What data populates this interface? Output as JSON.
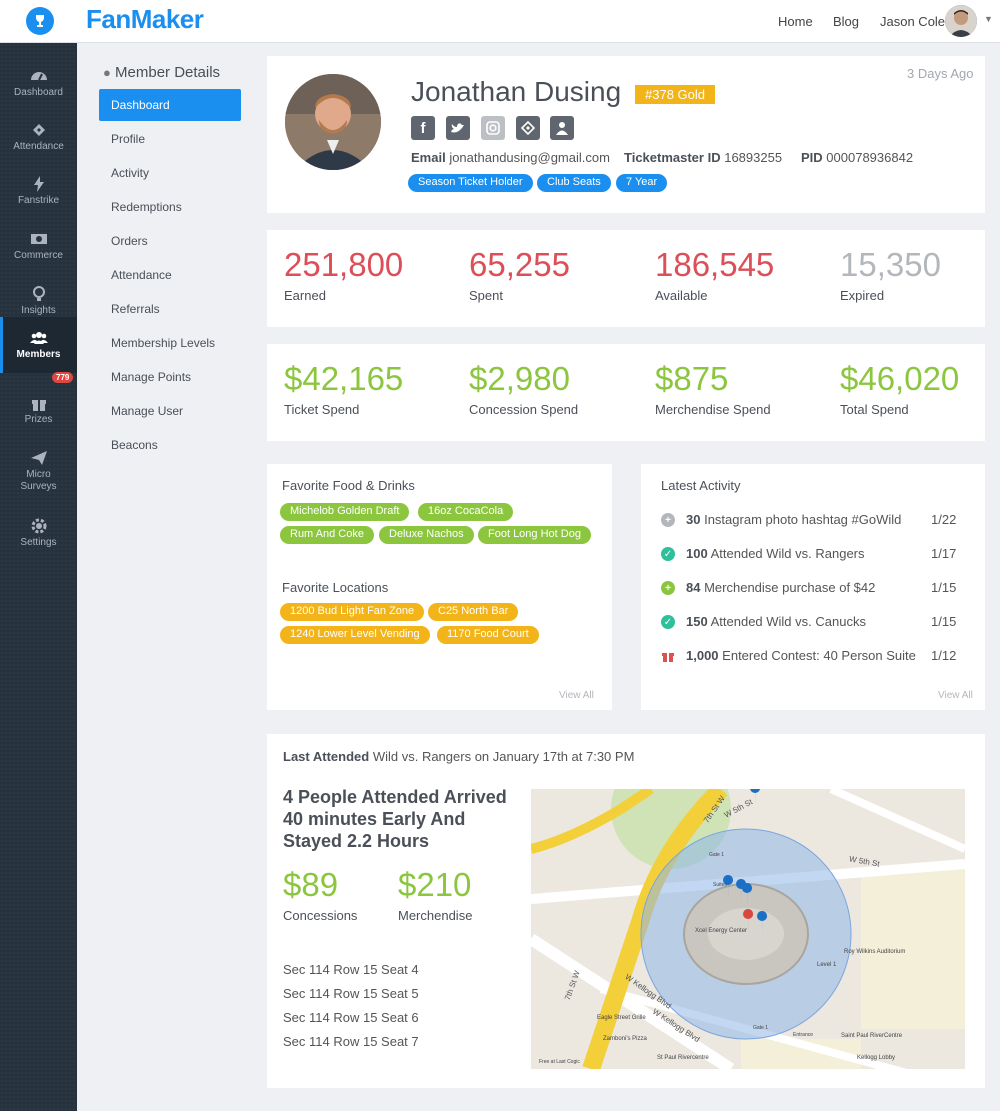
{
  "brand": {
    "name": "FanMaker",
    "accent": "#1b8ff0"
  },
  "topnav": {
    "home": "Home",
    "blog": "Blog",
    "user": "Jason Cole"
  },
  "sidebar": [
    {
      "label": "Dashboard",
      "icon": "dashboard-icon"
    },
    {
      "label": "Attendance",
      "icon": "ticket-icon"
    },
    {
      "label": "Fanstrike",
      "icon": "bolt-icon"
    },
    {
      "label": "Commerce",
      "icon": "money-icon"
    },
    {
      "label": "Insights",
      "icon": "lightbulb-icon"
    },
    {
      "label": "Members",
      "icon": "users-icon",
      "active": true
    },
    {
      "label": "Prizes",
      "icon": "gift-icon",
      "badge": "779"
    },
    {
      "label": "Micro",
      "label2": "Surveys",
      "icon": "paper-plane-icon"
    },
    {
      "label": "Settings",
      "icon": "gear-icon"
    }
  ],
  "subnav": {
    "title": "Member Details",
    "items": [
      "Dashboard",
      "Profile",
      "Activity",
      "Redemptions",
      "Orders",
      "Attendance",
      "Referrals",
      "Membership Levels",
      "Manage Points",
      "Manage User",
      "Beacons"
    ]
  },
  "profile": {
    "name": "Jonathan Dusing",
    "badge": "#378 Gold",
    "last_seen": "3 Days Ago",
    "email_label": "Email",
    "email": "jonathandusing@gmail.com",
    "tm_label": "Ticketmaster ID",
    "tm_id": "16893255",
    "pid_label": "PID",
    "pid": "000078936842",
    "tags": [
      "Season Ticket Holder",
      "Club Seats",
      "7 Year"
    ]
  },
  "points": [
    {
      "value": "251,800",
      "label": "Earned"
    },
    {
      "value": "65,255",
      "label": "Spent"
    },
    {
      "value": "186,545",
      "label": "Available"
    },
    {
      "value": "15,350",
      "label": "Expired"
    }
  ],
  "spend": [
    {
      "value": "$42,165",
      "label": "Ticket Spend"
    },
    {
      "value": "$2,980",
      "label": "Concession Spend"
    },
    {
      "value": "$875",
      "label": "Merchendise Spend"
    },
    {
      "value": "$46,020",
      "label": "Total Spend"
    }
  ],
  "favorites": {
    "food_title": "Favorite Food & Drinks",
    "food": [
      "Michelob Golden Draft",
      "16oz CocaCola",
      "Rum And Coke",
      "Deluxe Nachos",
      "Foot Long Hot Dog"
    ],
    "loc_title": "Favorite Locations",
    "locations": [
      "1200 Bud Light Fan Zone",
      "C25 North Bar",
      "1240 Lower Level Vending",
      "1170 Food Court"
    ],
    "view_all": "View All"
  },
  "activity": {
    "title": "Latest Activity",
    "items": [
      {
        "points": "30",
        "text": "Instagram photo hashtag #GoWild",
        "date": "1/22",
        "icon": "plus-icon"
      },
      {
        "points": "100",
        "text": "Attended Wild vs. Rangers",
        "date": "1/17",
        "icon": "check-icon"
      },
      {
        "points": "84",
        "text": "Merchendise purchase of $42",
        "date": "1/15",
        "icon": "plus-icon"
      },
      {
        "points": "150",
        "text": "Attended Wild vs. Canucks",
        "date": "1/15",
        "icon": "check-icon"
      },
      {
        "points": "1,000",
        "text": "Entered Contest: 40 Person Suite",
        "date": "1/12",
        "icon": "gift-icon"
      }
    ],
    "view_all": "View All"
  },
  "last_attended": {
    "label": "Last Attended",
    "event": "Wild vs. Rangers on January 17th at 7:30 PM",
    "headline": "4 People Attended Arrived 40 minutes Early And Stayed 2.2 Hours",
    "concessions_value": "$89",
    "concessions_label": "Concessions",
    "merch_value": "$210",
    "merch_label": "Merchendise",
    "seats": [
      "Sec 114 Row 15 Seat 4",
      "Sec 114 Row 15 Seat 5",
      "Sec 114 Row 15 Seat 6",
      "Sec 114 Row 15 Seat 7"
    ]
  },
  "map": {
    "streets": [
      "W 5th St",
      "W 5th St",
      "7th St W",
      "7th St W",
      "W Kellogg Blvd",
      "W Kellogg Blvd"
    ],
    "places": [
      "Xcel Energy Center",
      "Roy Wilkins Auditorium",
      "Level 1",
      "Eagle Street Grille",
      "Zamboni's Pizza",
      "St Paul Rivercentre",
      "Saint Paul RiverCentre",
      "Kellogg Lobby",
      "Gate 1",
      "Suites",
      "Entrance",
      "Free at Last Cogic",
      "Gate 1"
    ]
  }
}
